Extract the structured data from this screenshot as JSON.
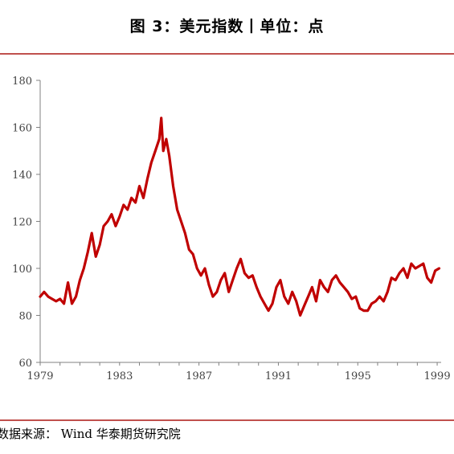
{
  "header": {
    "title": "图 3：美元指数丨单位：点"
  },
  "footer": {
    "source": "数据来源： Wind 华泰期货研究院"
  },
  "colors": {
    "line": "#c00000",
    "rule": "#c0504d",
    "axis": "#808080"
  },
  "chart_data": {
    "type": "line",
    "title": "图 3：美元指数丨单位：点",
    "xlabel": "",
    "ylabel": "",
    "xlim": [
      1979,
      1999.2
    ],
    "ylim": [
      60,
      180
    ],
    "grid": false,
    "legend": "none",
    "y_ticks": [
      "60",
      "80",
      "100",
      "120",
      "140",
      "160",
      "180"
    ],
    "x_ticks": [
      "1979",
      "1983",
      "1987",
      "1991",
      "1995",
      "1999"
    ],
    "series": [
      {
        "color": "#c00000",
        "x": [
          1979.0,
          1979.2,
          1979.4,
          1979.6,
          1979.8,
          1980.0,
          1980.2,
          1980.4,
          1980.6,
          1980.8,
          1981.0,
          1981.2,
          1981.4,
          1981.6,
          1981.8,
          1982.0,
          1982.2,
          1982.4,
          1982.6,
          1982.8,
          1983.0,
          1983.2,
          1983.4,
          1983.6,
          1983.8,
          1984.0,
          1984.2,
          1984.4,
          1984.6,
          1984.8,
          1985.0,
          1985.1,
          1985.2,
          1985.35,
          1985.5,
          1985.7,
          1985.9,
          1986.1,
          1986.3,
          1986.5,
          1986.7,
          1986.9,
          1987.1,
          1987.3,
          1987.5,
          1987.7,
          1987.9,
          1988.1,
          1988.3,
          1988.5,
          1988.7,
          1988.9,
          1989.1,
          1989.3,
          1989.5,
          1989.7,
          1989.9,
          1990.1,
          1990.3,
          1990.5,
          1990.7,
          1990.9,
          1991.1,
          1991.3,
          1991.5,
          1991.7,
          1991.9,
          1992.1,
          1992.3,
          1992.5,
          1992.7,
          1992.9,
          1993.1,
          1993.3,
          1993.5,
          1993.7,
          1993.9,
          1994.1,
          1994.3,
          1994.5,
          1994.7,
          1994.9,
          1995.1,
          1995.3,
          1995.5,
          1995.7,
          1995.9,
          1996.1,
          1996.3,
          1996.5,
          1996.7,
          1996.9,
          1997.1,
          1997.3,
          1997.5,
          1997.7,
          1997.9,
          1998.1,
          1998.3,
          1998.5,
          1998.7,
          1998.9,
          1999.1
        ],
        "values": [
          88,
          90,
          88,
          87,
          86,
          87,
          85,
          94,
          85,
          88,
          95,
          100,
          107,
          115,
          105,
          110,
          118,
          120,
          123,
          118,
          122,
          127,
          125,
          130,
          128,
          135,
          130,
          138,
          145,
          150,
          155,
          164,
          150,
          155,
          148,
          135,
          125,
          120,
          115,
          108,
          106,
          100,
          97,
          100,
          93,
          88,
          90,
          95,
          98,
          90,
          95,
          100,
          104,
          98,
          96,
          97,
          92,
          88,
          85,
          82,
          85,
          92,
          95,
          88,
          85,
          90,
          86,
          80,
          84,
          88,
          92,
          86,
          95,
          92,
          90,
          95,
          97,
          94,
          92,
          90,
          87,
          88,
          83,
          82,
          82,
          85,
          86,
          88,
          86,
          90,
          96,
          95,
          98,
          100,
          96,
          102,
          100,
          101,
          102,
          96,
          94,
          99,
          100
        ]
      }
    ]
  }
}
